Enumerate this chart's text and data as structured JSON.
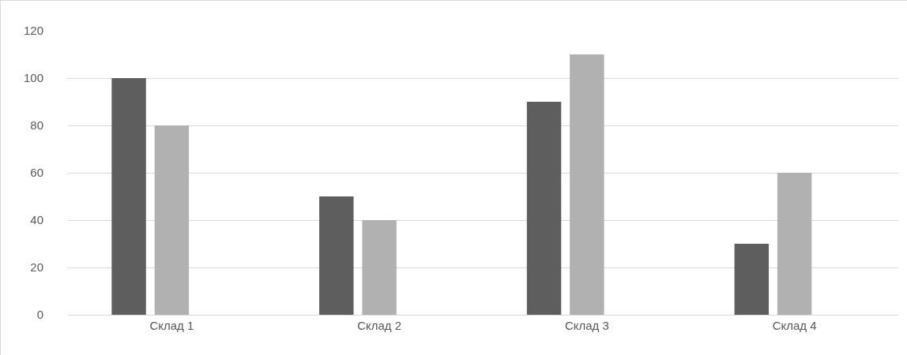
{
  "chart_data": {
    "type": "bar",
    "categories": [
      "Склад 1",
      "Склад 2",
      "Склад 3",
      "Склад 4"
    ],
    "series": [
      {
        "color": "#5e5e5e",
        "values": [
          100,
          50,
          90,
          30
        ]
      },
      {
        "color": "#b1b1b1",
        "values": [
          80,
          40,
          110,
          60
        ]
      },
      {
        "color": "#8c8c8c",
        "values": [
          null,
          null,
          null,
          null
        ]
      }
    ],
    "ylim": [
      0,
      120
    ],
    "yticks": [
      0,
      20,
      40,
      60,
      80,
      100,
      120
    ],
    "grid": "y"
  }
}
